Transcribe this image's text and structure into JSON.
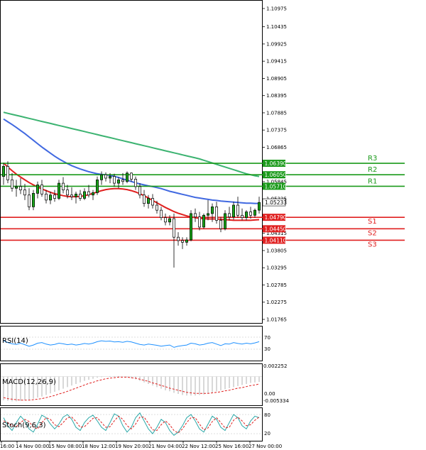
{
  "chart_data": {
    "type": "candlestick",
    "title": "",
    "price_axis": {
      "min": 1.01765,
      "max": 1.10975,
      "ticks": [
        "1.10975",
        "1.10435",
        "1.09925",
        "1.09415",
        "1.08905",
        "1.08395",
        "1.07885",
        "1.07375",
        "1.06865",
        "1.05845",
        "1.05335",
        "1.04315",
        "1.03805",
        "1.03295",
        "1.02785",
        "1.02275",
        "1.01765"
      ]
    },
    "time_labels": [
      "16:00",
      "14 Nov 00:00",
      "15 Nov 08:00",
      "18 Nov 12:00",
      "19 Nov 20:00",
      "21 Nov 04:00",
      "22 Nov 12:00",
      "25 Nov 16:00",
      "27 Nov 00:00"
    ],
    "current_price": "1.05233",
    "levels": [
      {
        "name": "R3",
        "value": 1.0639,
        "label": "1.06390",
        "color": "#1a9a1a"
      },
      {
        "name": "R2",
        "value": 1.0605,
        "label": "1.06050",
        "color": "#1a9a1a"
      },
      {
        "name": "R1",
        "value": 1.0571,
        "label": "1.05710",
        "color": "#1a9a1a"
      },
      {
        "name": "S1",
        "value": 1.0479,
        "label": "1.04790",
        "color": "#e02020"
      },
      {
        "name": "S2",
        "value": 1.0445,
        "label": "1.04450",
        "color": "#e02020"
      },
      {
        "name": "S3",
        "value": 1.0411,
        "label": "1.04110",
        "color": "#e02020"
      }
    ],
    "candles": [
      {
        "o": 1.06,
        "h": 1.064,
        "l": 1.0575,
        "c": 1.063
      },
      {
        "o": 1.063,
        "h": 1.0645,
        "l": 1.058,
        "c": 1.059
      },
      {
        "o": 1.059,
        "h": 1.061,
        "l": 1.0555,
        "c": 1.0565
      },
      {
        "o": 1.0565,
        "h": 1.059,
        "l": 1.054,
        "c": 1.057
      },
      {
        "o": 1.057,
        "h": 1.0595,
        "l": 1.0548,
        "c": 1.056
      },
      {
        "o": 1.056,
        "h": 1.0578,
        "l": 1.053,
        "c": 1.0545
      },
      {
        "o": 1.0545,
        "h": 1.0565,
        "l": 1.05,
        "c": 1.051
      },
      {
        "o": 1.051,
        "h": 1.056,
        "l": 1.05,
        "c": 1.055
      },
      {
        "o": 1.055,
        "h": 1.0585,
        "l": 1.0535,
        "c": 1.0575
      },
      {
        "o": 1.0575,
        "h": 1.059,
        "l": 1.054,
        "c": 1.0548
      },
      {
        "o": 1.0548,
        "h": 1.056,
        "l": 1.052,
        "c": 1.053
      },
      {
        "o": 1.053,
        "h": 1.0555,
        "l": 1.0518,
        "c": 1.0545
      },
      {
        "o": 1.0545,
        "h": 1.056,
        "l": 1.0525,
        "c": 1.0535
      },
      {
        "o": 1.0535,
        "h": 1.059,
        "l": 1.053,
        "c": 1.058
      },
      {
        "o": 1.058,
        "h": 1.0598,
        "l": 1.055,
        "c": 1.056
      },
      {
        "o": 1.056,
        "h": 1.0575,
        "l": 1.0535,
        "c": 1.0545
      },
      {
        "o": 1.0545,
        "h": 1.0568,
        "l": 1.053,
        "c": 1.054
      },
      {
        "o": 1.054,
        "h": 1.0555,
        "l": 1.052,
        "c": 1.0548
      },
      {
        "o": 1.0548,
        "h": 1.056,
        "l": 1.0528,
        "c": 1.0535
      },
      {
        "o": 1.0535,
        "h": 1.0565,
        "l": 1.053,
        "c": 1.0555
      },
      {
        "o": 1.0555,
        "h": 1.0575,
        "l": 1.0538,
        "c": 1.0545
      },
      {
        "o": 1.0545,
        "h": 1.056,
        "l": 1.053,
        "c": 1.0552
      },
      {
        "o": 1.0552,
        "h": 1.06,
        "l": 1.0545,
        "c": 1.059
      },
      {
        "o": 1.059,
        "h": 1.0615,
        "l": 1.0575,
        "c": 1.0605
      },
      {
        "o": 1.0605,
        "h": 1.0612,
        "l": 1.0585,
        "c": 1.0595
      },
      {
        "o": 1.0595,
        "h": 1.061,
        "l": 1.058,
        "c": 1.06
      },
      {
        "o": 1.06,
        "h": 1.0608,
        "l": 1.057,
        "c": 1.058
      },
      {
        "o": 1.058,
        "h": 1.0598,
        "l": 1.0565,
        "c": 1.059
      },
      {
        "o": 1.059,
        "h": 1.061,
        "l": 1.0575,
        "c": 1.0585
      },
      {
        "o": 1.0585,
        "h": 1.0615,
        "l": 1.058,
        "c": 1.061
      },
      {
        "o": 1.061,
        "h": 1.0612,
        "l": 1.0585,
        "c": 1.0592
      },
      {
        "o": 1.0592,
        "h": 1.06,
        "l": 1.056,
        "c": 1.057
      },
      {
        "o": 1.057,
        "h": 1.058,
        "l": 1.0535,
        "c": 1.0545
      },
      {
        "o": 1.0545,
        "h": 1.056,
        "l": 1.051,
        "c": 1.052
      },
      {
        "o": 1.052,
        "h": 1.0545,
        "l": 1.0505,
        "c": 1.0535
      },
      {
        "o": 1.0535,
        "h": 1.0548,
        "l": 1.0505,
        "c": 1.0515
      },
      {
        "o": 1.0515,
        "h": 1.0528,
        "l": 1.049,
        "c": 1.05
      },
      {
        "o": 1.05,
        "h": 1.051,
        "l": 1.047,
        "c": 1.0478
      },
      {
        "o": 1.0478,
        "h": 1.049,
        "l": 1.0455,
        "c": 1.0465
      },
      {
        "o": 1.0465,
        "h": 1.0485,
        "l": 1.0455,
        "c": 1.0475
      },
      {
        "o": 1.0475,
        "h": 1.049,
        "l": 1.033,
        "c": 1.042
      },
      {
        "o": 1.042,
        "h": 1.0435,
        "l": 1.0395,
        "c": 1.041
      },
      {
        "o": 1.041,
        "h": 1.042,
        "l": 1.0385,
        "c": 1.0405
      },
      {
        "o": 1.0405,
        "h": 1.042,
        "l": 1.0395,
        "c": 1.0412
      },
      {
        "o": 1.0412,
        "h": 1.05,
        "l": 1.0408,
        "c": 1.049
      },
      {
        "o": 1.049,
        "h": 1.0505,
        "l": 1.0465,
        "c": 1.048
      },
      {
        "o": 1.048,
        "h": 1.0495,
        "l": 1.044,
        "c": 1.045
      },
      {
        "o": 1.045,
        "h": 1.049,
        "l": 1.0445,
        "c": 1.0485
      },
      {
        "o": 1.0485,
        "h": 1.053,
        "l": 1.047,
        "c": 1.049
      },
      {
        "o": 1.049,
        "h": 1.052,
        "l": 1.0465,
        "c": 1.051
      },
      {
        "o": 1.051,
        "h": 1.0525,
        "l": 1.046,
        "c": 1.047
      },
      {
        "o": 1.047,
        "h": 1.048,
        "l": 1.0435,
        "c": 1.0445
      },
      {
        "o": 1.0445,
        "h": 1.05,
        "l": 1.044,
        "c": 1.049
      },
      {
        "o": 1.049,
        "h": 1.051,
        "l": 1.047,
        "c": 1.048
      },
      {
        "o": 1.048,
        "h": 1.0525,
        "l": 1.0472,
        "c": 1.0515
      },
      {
        "o": 1.0515,
        "h": 1.054,
        "l": 1.0478,
        "c": 1.0485
      },
      {
        "o": 1.0485,
        "h": 1.0505,
        "l": 1.047,
        "c": 1.0478
      },
      {
        "o": 1.0478,
        "h": 1.05,
        "l": 1.047,
        "c": 1.0495
      },
      {
        "o": 1.0495,
        "h": 1.051,
        "l": 1.0475,
        "c": 1.0485
      },
      {
        "o": 1.0485,
        "h": 1.0505,
        "l": 1.0478,
        "c": 1.05
      },
      {
        "o": 1.05,
        "h": 1.054,
        "l": 1.049,
        "c": 1.0523
      }
    ],
    "ma_blue": [
      1.077,
      1.0762,
      1.0754,
      1.0745,
      1.0736,
      1.0727,
      1.0717,
      1.0707,
      1.0697,
      1.0687,
      1.0678,
      1.0669,
      1.066,
      1.0652,
      1.0645,
      1.0638,
      1.0632,
      1.0627,
      1.0622,
      1.0618,
      1.0614,
      1.0611,
      1.0608,
      1.0606,
      1.0605,
      1.0603,
      1.06,
      1.0597,
      1.0593,
      1.0589,
      1.0585,
      1.0581,
      1.0578,
      1.0575,
      1.0572,
      1.057,
      1.0567,
      1.0564,
      1.056,
      1.0556,
      1.0553,
      1.055,
      1.0547,
      1.0544,
      1.0541,
      1.0538,
      1.0536,
      1.0534,
      1.0532,
      1.053,
      1.0529,
      1.0527,
      1.0526,
      1.0525,
      1.0524,
      1.0523,
      1.0522,
      1.0521,
      1.0521,
      1.052,
      1.052
    ],
    "ma_red": [
      1.064,
      1.0628,
      1.0617,
      1.0607,
      1.0598,
      1.059,
      1.0582,
      1.0575,
      1.0569,
      1.0563,
      1.0558,
      1.0553,
      1.0549,
      1.0546,
      1.0543,
      1.0541,
      1.054,
      1.054,
      1.0541,
      1.0543,
      1.0546,
      1.055,
      1.0554,
      1.0558,
      1.0561,
      1.0563,
      1.0564,
      1.0564,
      1.0563,
      1.0561,
      1.0558,
      1.0554,
      1.0549,
      1.0543,
      1.0536,
      1.0529,
      1.0522,
      1.0515,
      1.0508,
      1.0502,
      1.0496,
      1.0491,
      1.0487,
      1.0483,
      1.048,
      1.0478,
      1.0476,
      1.0475,
      1.0474,
      1.0474,
      1.0474,
      1.0473,
      1.0472,
      1.0471,
      1.047,
      1.047,
      1.047,
      1.047,
      1.047,
      1.0471,
      1.0472
    ],
    "ma_green": [
      1.079,
      1.0787,
      1.0784,
      1.0781,
      1.0778,
      1.0775,
      1.0772,
      1.0769,
      1.0766,
      1.0763,
      1.076,
      1.0757,
      1.0754,
      1.0751,
      1.0748,
      1.0745,
      1.0742,
      1.0739,
      1.0736,
      1.0733,
      1.073,
      1.0727,
      1.0724,
      1.0721,
      1.0718,
      1.0715,
      1.0712,
      1.0709,
      1.0706,
      1.0703,
      1.07,
      1.0697,
      1.0694,
      1.0691,
      1.0688,
      1.0685,
      1.0682,
      1.0679,
      1.0676,
      1.0673,
      1.067,
      1.0667,
      1.0664,
      1.0661,
      1.0658,
      1.0655,
      1.0652,
      1.0648,
      1.0644,
      1.064,
      1.0636,
      1.0632,
      1.0628,
      1.0624,
      1.062,
      1.0616,
      1.0612,
      1.0608,
      1.0605,
      1.0602,
      1.06
    ],
    "rsi": {
      "label": "RSI(14)",
      "levels": [
        "70",
        "30"
      ],
      "values": [
        58,
        52,
        48,
        46,
        50,
        45,
        40,
        44,
        50,
        52,
        47,
        44,
        46,
        50,
        48,
        45,
        47,
        44,
        46,
        49,
        47,
        50,
        55,
        58,
        56,
        57,
        54,
        55,
        53,
        56,
        54,
        50,
        46,
        44,
        47,
        45,
        43,
        40,
        42,
        44,
        36,
        40,
        42,
        44,
        50,
        48,
        44,
        46,
        50,
        52,
        47,
        42,
        48,
        47,
        52,
        49,
        47,
        50,
        48,
        51,
        55
      ]
    },
    "macd": {
      "label": "MACD(12,26,9)",
      "ticks": [
        "0.002252",
        "0.00",
        "-0.005334"
      ],
      "hist": [
        -0.0045,
        -0.0046,
        -0.0047,
        -0.0047,
        -0.0046,
        -0.0045,
        -0.0044,
        -0.0042,
        -0.004,
        -0.0038,
        -0.0035,
        -0.0032,
        -0.0029,
        -0.0026,
        -0.0023,
        -0.002,
        -0.0017,
        -0.0014,
        -0.0011,
        -0.0008,
        -0.0006,
        -0.0004,
        -0.0002,
        -0.0001,
        0.0,
        0.0001,
        0.0001,
        0.0001,
        0.0,
        -0.0001,
        -0.0003,
        -0.0005,
        -0.0008,
        -0.0011,
        -0.0014,
        -0.0017,
        -0.002,
        -0.0023,
        -0.0026,
        -0.0028,
        -0.0031,
        -0.0033,
        -0.0035,
        -0.0036,
        -0.0036,
        -0.0036,
        -0.0035,
        -0.0034,
        -0.0032,
        -0.003,
        -0.0028,
        -0.0026,
        -0.0024,
        -0.0022,
        -0.002,
        -0.0018,
        -0.0016,
        -0.0014,
        -0.0012,
        -0.0011,
        -0.001
      ],
      "signal": [
        -0.004,
        -0.0042,
        -0.0043,
        -0.0044,
        -0.0045,
        -0.0045,
        -0.0045,
        -0.0044,
        -0.0043,
        -0.0042,
        -0.004,
        -0.0038,
        -0.0036,
        -0.0033,
        -0.0031,
        -0.0028,
        -0.0025,
        -0.0022,
        -0.0019,
        -0.0016,
        -0.0013,
        -0.0011,
        -0.0008,
        -0.0006,
        -0.0004,
        -0.0003,
        -0.0002,
        -0.0001,
        -0.0001,
        -0.0001,
        -0.0002,
        -0.0003,
        -0.0005,
        -0.0007,
        -0.0009,
        -0.0012,
        -0.0014,
        -0.0017,
        -0.0019,
        -0.0022,
        -0.0024,
        -0.0026,
        -0.0028,
        -0.003,
        -0.0031,
        -0.0032,
        -0.0032,
        -0.0032,
        -0.0032,
        -0.0031,
        -0.003,
        -0.0029,
        -0.0027,
        -0.0026,
        -0.0024,
        -0.0022,
        -0.0021,
        -0.0019,
        -0.0017,
        -0.0016,
        -0.0014
      ]
    },
    "stoch": {
      "label": "Stoch(9,6,3)",
      "ticks": [
        "80",
        "20"
      ],
      "k": [
        70,
        45,
        30,
        55,
        75,
        60,
        35,
        25,
        50,
        78,
        70,
        50,
        35,
        50,
        72,
        80,
        65,
        40,
        30,
        55,
        70,
        78,
        60,
        40,
        30,
        55,
        82,
        75,
        45,
        25,
        40,
        70,
        85,
        60,
        35,
        20,
        40,
        65,
        55,
        30,
        15,
        25,
        45,
        70,
        80,
        60,
        35,
        25,
        50,
        75,
        65,
        40,
        30,
        55,
        80,
        70,
        45,
        35,
        60,
        75,
        70
      ],
      "d": [
        60,
        55,
        45,
        42,
        55,
        65,
        58,
        40,
        35,
        55,
        70,
        65,
        48,
        42,
        55,
        70,
        72,
        58,
        40,
        42,
        55,
        68,
        70,
        55,
        40,
        42,
        60,
        75,
        65,
        45,
        35,
        50,
        72,
        72,
        52,
        32,
        30,
        48,
        60,
        48,
        30,
        22,
        35,
        55,
        70,
        70,
        50,
        32,
        38,
        58,
        70,
        55,
        38,
        40,
        62,
        72,
        60,
        45,
        48,
        62,
        72
      ]
    }
  }
}
